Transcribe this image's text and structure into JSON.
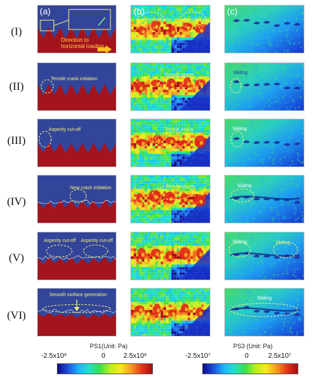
{
  "rows": [
    "(I)",
    "(II)",
    "(III)",
    "(IV)",
    "(V)",
    "(VI)"
  ],
  "columns": [
    "(a)",
    "(b)",
    "(c)"
  ],
  "annotations": {
    "row1_a_direction": "Direction to horizontal loading",
    "row1_b_left": "Tensile stress",
    "row1_b_right": "Tensile stress",
    "row2_a": "Tensile crack initiation",
    "row2_b": "Tensile stress",
    "row2_c": "Sliding",
    "row3_a": "Asperity cut-off",
    "row3_b": "Tensile stress",
    "row3_c": "Sliding",
    "row4_a": "New crack initiation",
    "row4_b": "Tensile stress",
    "row4_c": "Sliding",
    "row5_a_left": "Asperity cut-off",
    "row5_a_right": "Asperity cut-off",
    "row5_c_left": "Sliding",
    "row5_c_right": "Sliding",
    "row6_a": "Smooth surface generation",
    "row6_c": "Sliding"
  },
  "colorbars": {
    "ps1": {
      "title": "PS1(Unit: Pa)",
      "min_label": "-2.5x10⁶",
      "mid_label": "0",
      "max_label": "2.5x10⁶"
    },
    "ps3": {
      "title": "PS3 (Unit: Pa)",
      "min_label": "-2.5x10⁷",
      "mid_label": "0",
      "max_label": "2.5x10⁷"
    }
  },
  "colors": {
    "rock_blue": "#33459a",
    "rock_red": "#a3141c",
    "annotation_yellow": "#f3f37a"
  }
}
